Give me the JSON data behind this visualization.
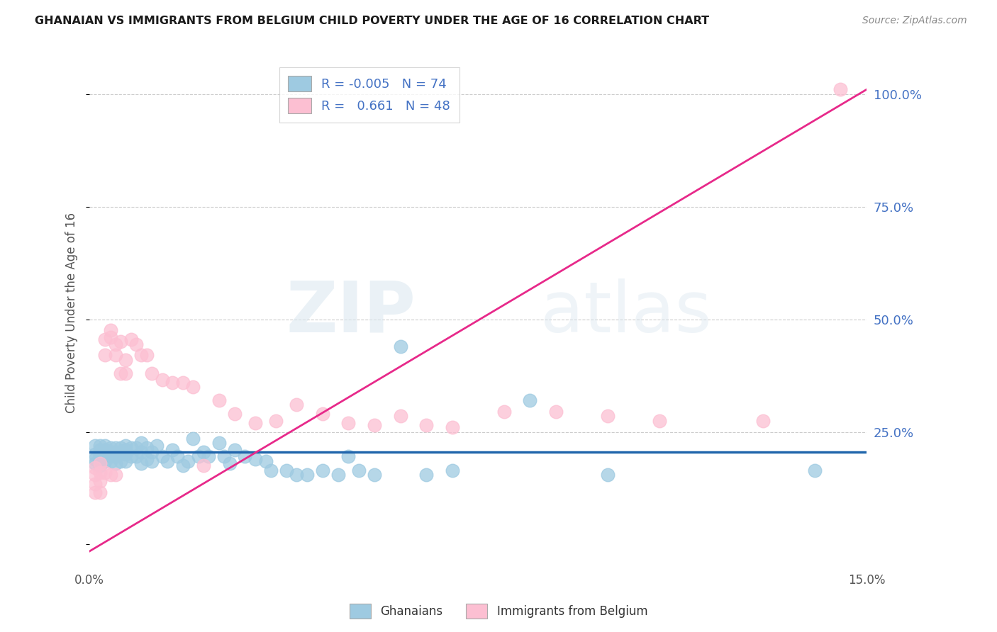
{
  "title": "GHANAIAN VS IMMIGRANTS FROM BELGIUM CHILD POVERTY UNDER THE AGE OF 16 CORRELATION CHART",
  "source": "Source: ZipAtlas.com",
  "ylabel": "Child Poverty Under the Age of 16",
  "xlim": [
    0.0,
    0.15
  ],
  "ylim": [
    -0.05,
    1.08
  ],
  "xticks": [
    0.0,
    0.15
  ],
  "xtick_labels": [
    "0.0%",
    "15.0%"
  ],
  "yticks_right": [
    0.0,
    0.25,
    0.5,
    0.75,
    1.0
  ],
  "ytick_labels_right": [
    "",
    "25.0%",
    "50.0%",
    "75.0%",
    "100.0%"
  ],
  "legend_blue_r": "-0.005",
  "legend_blue_n": "74",
  "legend_pink_r": "0.661",
  "legend_pink_n": "48",
  "legend_label_blue": "Ghanaians",
  "legend_label_pink": "Immigrants from Belgium",
  "blue_color": "#9ecae1",
  "pink_color": "#fcbfd2",
  "line_blue_color": "#2166ac",
  "line_pink_color": "#e7298a",
  "watermark_zip": "ZIP",
  "watermark_atlas": "atlas",
  "background_color": "#ffffff",
  "blue_trend_y0": 0.205,
  "blue_trend_y1": 0.205,
  "pink_trend_x0": 0.0,
  "pink_trend_y0": -0.015,
  "pink_trend_x1": 0.15,
  "pink_trend_y1": 1.01,
  "blue_scatter_x": [
    0.001,
    0.001,
    0.001,
    0.001,
    0.002,
    0.002,
    0.002,
    0.002,
    0.002,
    0.002,
    0.003,
    0.003,
    0.003,
    0.003,
    0.003,
    0.004,
    0.004,
    0.004,
    0.004,
    0.005,
    0.005,
    0.005,
    0.005,
    0.006,
    0.006,
    0.006,
    0.007,
    0.007,
    0.007,
    0.007,
    0.008,
    0.008,
    0.009,
    0.009,
    0.01,
    0.01,
    0.01,
    0.011,
    0.011,
    0.012,
    0.012,
    0.013,
    0.014,
    0.015,
    0.016,
    0.017,
    0.018,
    0.019,
    0.02,
    0.021,
    0.022,
    0.023,
    0.025,
    0.026,
    0.027,
    0.028,
    0.03,
    0.032,
    0.034,
    0.035,
    0.038,
    0.04,
    0.042,
    0.045,
    0.048,
    0.05,
    0.052,
    0.055,
    0.06,
    0.065,
    0.07,
    0.085,
    0.1,
    0.14
  ],
  "blue_scatter_y": [
    0.22,
    0.2,
    0.19,
    0.18,
    0.22,
    0.21,
    0.2,
    0.195,
    0.185,
    0.175,
    0.22,
    0.21,
    0.205,
    0.195,
    0.185,
    0.215,
    0.205,
    0.195,
    0.185,
    0.215,
    0.205,
    0.195,
    0.18,
    0.215,
    0.205,
    0.185,
    0.22,
    0.21,
    0.2,
    0.185,
    0.215,
    0.195,
    0.215,
    0.195,
    0.225,
    0.205,
    0.18,
    0.215,
    0.19,
    0.205,
    0.185,
    0.22,
    0.195,
    0.185,
    0.21,
    0.195,
    0.175,
    0.185,
    0.235,
    0.195,
    0.205,
    0.195,
    0.225,
    0.195,
    0.18,
    0.21,
    0.195,
    0.19,
    0.185,
    0.165,
    0.165,
    0.155,
    0.155,
    0.165,
    0.155,
    0.195,
    0.165,
    0.155,
    0.44,
    0.155,
    0.165,
    0.32,
    0.155,
    0.165
  ],
  "pink_scatter_x": [
    0.001,
    0.001,
    0.001,
    0.001,
    0.002,
    0.002,
    0.002,
    0.002,
    0.003,
    0.003,
    0.003,
    0.004,
    0.004,
    0.004,
    0.005,
    0.005,
    0.005,
    0.006,
    0.006,
    0.007,
    0.007,
    0.008,
    0.009,
    0.01,
    0.011,
    0.012,
    0.014,
    0.016,
    0.018,
    0.02,
    0.022,
    0.025,
    0.028,
    0.032,
    0.036,
    0.04,
    0.045,
    0.05,
    0.055,
    0.06,
    0.065,
    0.07,
    0.08,
    0.09,
    0.1,
    0.11,
    0.13,
    0.145
  ],
  "pink_scatter_y": [
    0.17,
    0.155,
    0.135,
    0.115,
    0.18,
    0.16,
    0.14,
    0.115,
    0.455,
    0.42,
    0.16,
    0.475,
    0.46,
    0.155,
    0.445,
    0.42,
    0.155,
    0.45,
    0.38,
    0.41,
    0.38,
    0.455,
    0.445,
    0.42,
    0.42,
    0.38,
    0.365,
    0.36,
    0.36,
    0.35,
    0.175,
    0.32,
    0.29,
    0.27,
    0.275,
    0.31,
    0.29,
    0.27,
    0.265,
    0.285,
    0.265,
    0.26,
    0.295,
    0.295,
    0.285,
    0.275,
    0.275,
    1.01
  ]
}
